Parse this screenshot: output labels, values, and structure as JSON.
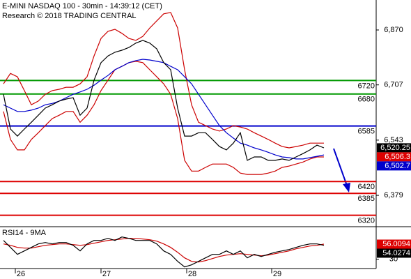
{
  "chart_data": [
    {
      "type": "line",
      "title": "E-MINI NASDAQ 100 - 30min - 14:39:12 (CET)",
      "subtitle": "Research © 2018 TRADING CENTRAL",
      "xlim": [
        0,
        53.5
      ],
      "xticks": [
        {
          "value": 1.7,
          "label": "26"
        },
        {
          "value": 14,
          "label": "27"
        },
        {
          "value": 26.3,
          "label": "28"
        },
        {
          "value": 38.5,
          "label": "29"
        }
      ],
      "ylim": [
        6286,
        6959
      ],
      "yticks": [
        {
          "value": 6870,
          "label": "6,870"
        },
        {
          "value": 6707,
          "label": "6,707"
        },
        {
          "value": 6543,
          "label": "6,543"
        },
        {
          "value": 6379,
          "label": "6,379"
        }
      ],
      "series": [
        {
          "color": "#cc0000",
          "values": [
            6710,
            6741,
            6731,
            6690,
            6648,
            6659,
            6679,
            6690,
            6694,
            6700,
            6700,
            6710,
            6731,
            6793,
            6845,
            6866,
            6872,
            6860,
            6845,
            6839,
            6851,
            6876,
            6897,
            6918,
            6922,
            6876,
            6752,
            6648,
            6596,
            6586,
            6576,
            6570,
            6576,
            6586,
            6582,
            6576,
            6565,
            6555,
            6545,
            6534,
            6524,
            6520,
            6524,
            6528,
            6534,
            6534,
            6534
          ]
        },
        {
          "color": "#cc0000",
          "values": [
            6628,
            6545,
            6514,
            6514,
            6545,
            6565,
            6586,
            6607,
            6617,
            6628,
            6628,
            6596,
            6617,
            6648,
            6690,
            6721,
            6752,
            6762,
            6773,
            6777,
            6773,
            6752,
            6731,
            6710,
            6679,
            6607,
            6483,
            6451,
            6451,
            6462,
            6472,
            6472,
            6472,
            6462,
            6445,
            6441,
            6441,
            6441,
            6445,
            6451,
            6462,
            6466,
            6472,
            6478,
            6487,
            6493,
            6493
          ]
        },
        {
          "color": "#0000cc",
          "values": [
            6648,
            6638,
            6628,
            6628,
            6632,
            6638,
            6648,
            6652,
            6659,
            6669,
            6679,
            6686,
            6694,
            6706,
            6721,
            6735,
            6752,
            6762,
            6773,
            6779,
            6783,
            6781,
            6777,
            6773,
            6762,
            6752,
            6731,
            6710,
            6679,
            6648,
            6617,
            6586,
            6565,
            6549,
            6534,
            6528,
            6520,
            6514,
            6507,
            6499,
            6493,
            6491,
            6487,
            6487,
            6491,
            6495,
            6499
          ]
        },
        {
          "color": "#000000",
          "values": [
            6679,
            6576,
            6555,
            6576,
            6596,
            6617,
            6638,
            6648,
            6659,
            6665,
            6669,
            6617,
            6638,
            6721,
            6773,
            6793,
            6804,
            6810,
            6818,
            6831,
            6839,
            6831,
            6814,
            6773,
            6752,
            6638,
            6555,
            6555,
            6565,
            6565,
            6545,
            6524,
            6514,
            6534,
            6565,
            6483,
            6493,
            6493,
            6483,
            6483,
            6487,
            6483,
            6493,
            6503,
            6514,
            6528,
            6520
          ]
        }
      ],
      "levels": [
        {
          "value": 6720,
          "color": "#009900"
        },
        {
          "value": 6680,
          "color": "#009900"
        },
        {
          "value": 6585,
          "color": "#0000cc"
        },
        {
          "value": 6420,
          "color": "#dd0000"
        },
        {
          "value": 6385,
          "color": "#dd0000"
        },
        {
          "value": 6320,
          "color": "#dd0000"
        }
      ],
      "tags": [
        {
          "value": 6520.25,
          "label": "6,520.25",
          "color": "#000000"
        },
        {
          "value": 6506.3,
          "label": "6,506.3",
          "color": "#dd0000"
        },
        {
          "value": 6502.7,
          "label": "6,502.7",
          "color": "#0000cc"
        }
      ]
    },
    {
      "type": "line",
      "title": "RSI14 - 9MA",
      "xlim": [
        0,
        53.5
      ],
      "ylim": [
        14,
        86
      ],
      "yticks": [
        30
      ],
      "series": [
        {
          "color": "#cc0000",
          "values": [
            56.4,
            54.0,
            50.4,
            49.2,
            49.2,
            51.6,
            54.0,
            55.2,
            56.4,
            56.4,
            55.2,
            54.0,
            55.2,
            57.6,
            60.0,
            62.4,
            63.6,
            64.8,
            66.0,
            66.0,
            64.8,
            63.6,
            61.2,
            56.4,
            50.4,
            42.0,
            32.4,
            26.4,
            25.2,
            27.6,
            31.2,
            34.8,
            37.2,
            38.4,
            39.6,
            38.4,
            37.2,
            36.0,
            37.2,
            39.6,
            42.0,
            44.4,
            48.0,
            50.4,
            52.8,
            54.0,
            56.0
          ]
        },
        {
          "color": "#000000",
          "values": [
            62.4,
            50.4,
            38.4,
            44.4,
            50.4,
            56.4,
            58.8,
            56.4,
            58.8,
            58.8,
            54.0,
            44.4,
            56.4,
            62.4,
            62.4,
            66.0,
            62.4,
            68.4,
            66.0,
            62.4,
            62.4,
            62.4,
            56.4,
            44.4,
            38.4,
            26.4,
            16.8,
            20.4,
            26.4,
            32.4,
            38.4,
            38.4,
            44.4,
            38.4,
            44.4,
            32.4,
            38.4,
            34.8,
            38.4,
            42.0,
            44.4,
            46.8,
            50.4,
            54.0,
            56.4,
            56.4,
            54.0
          ]
        }
      ],
      "tags": [
        {
          "value": 56.0094,
          "color": "#dd0000"
        },
        {
          "value": 54.0274,
          "color": "#000000"
        }
      ]
    }
  ]
}
